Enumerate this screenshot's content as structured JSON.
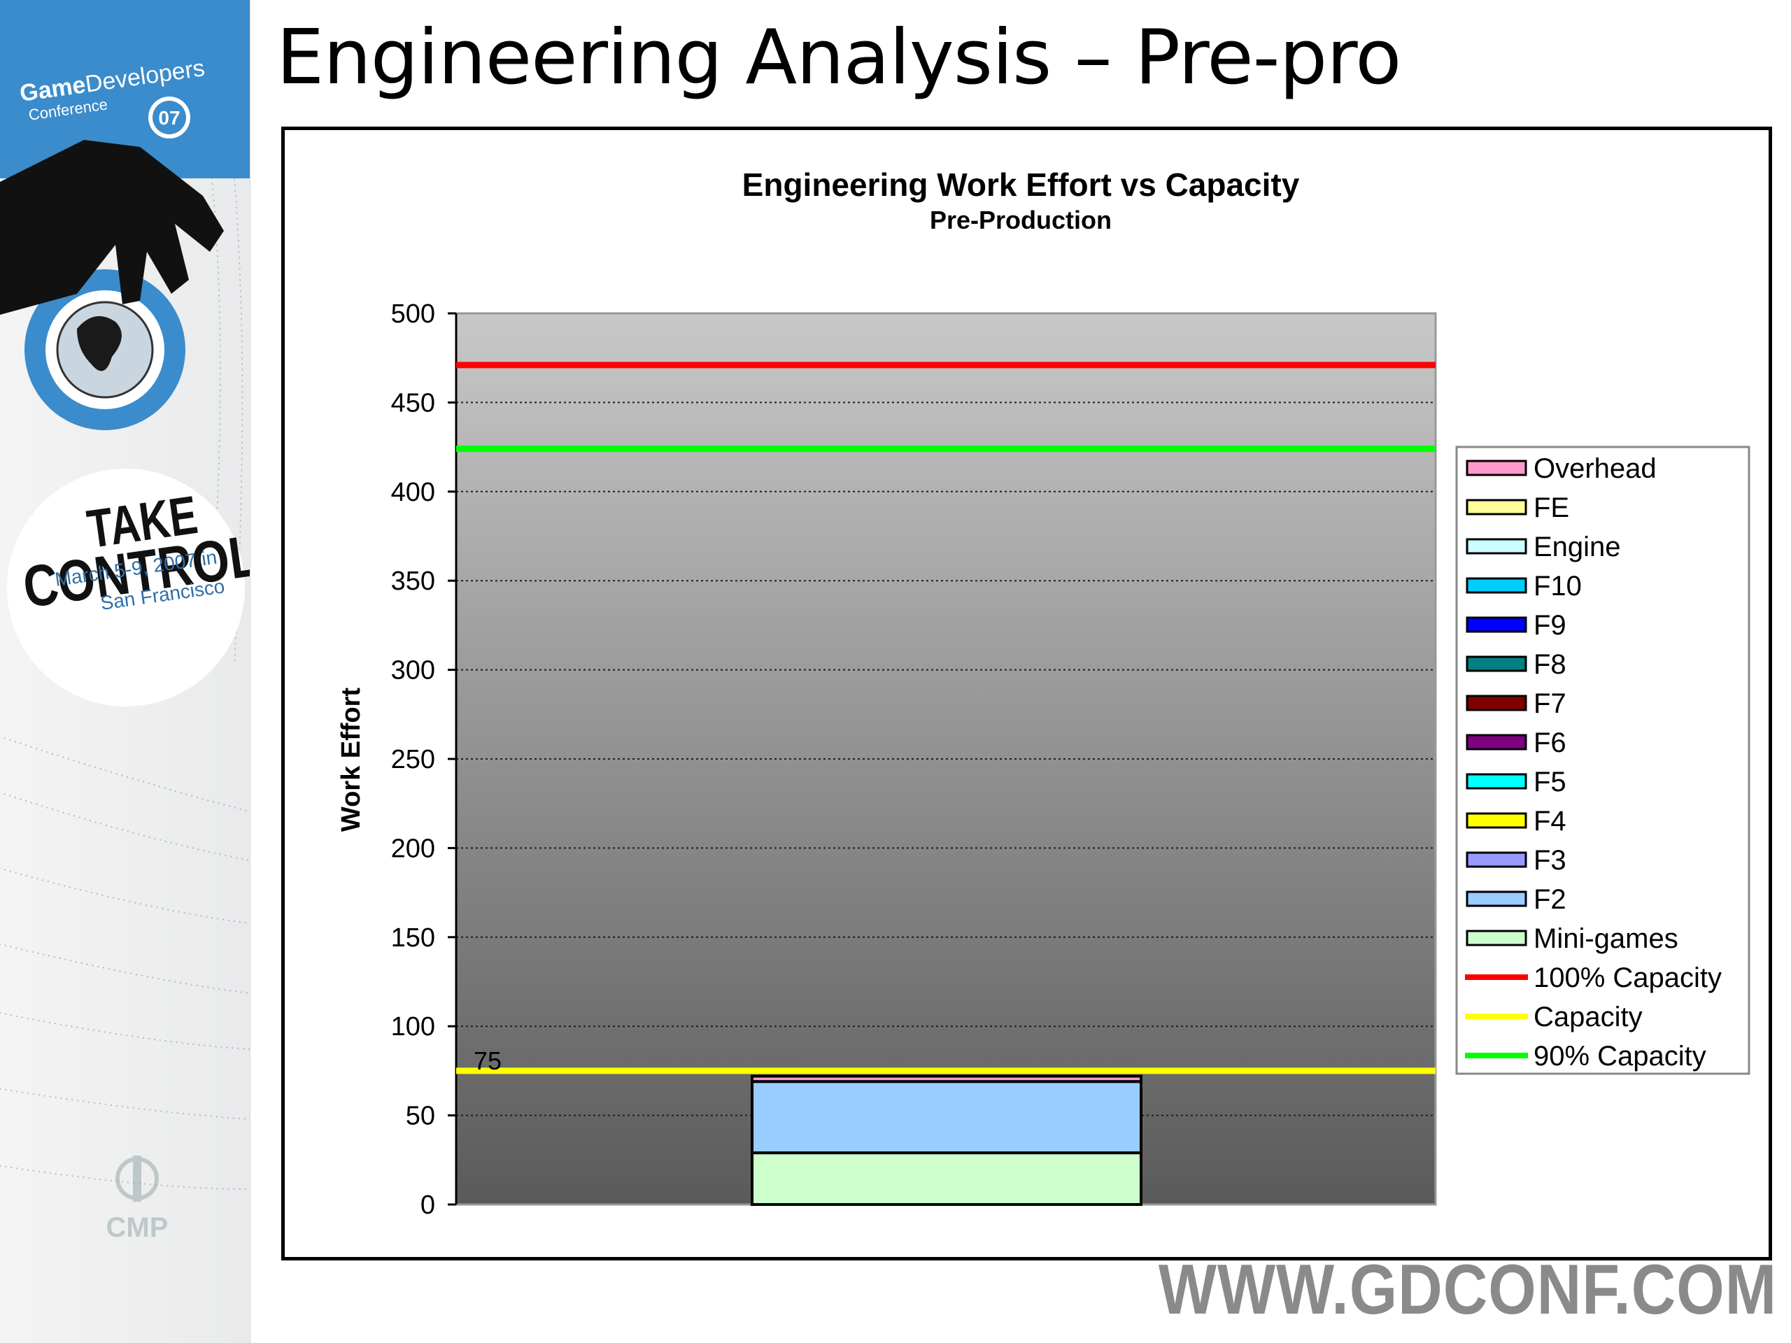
{
  "slide": {
    "title": "Engineering Analysis – Pre-pro",
    "footer_url": "WWW.GDCONF.COM"
  },
  "sidebar": {
    "logo_line1_bold": "Game",
    "logo_line1_rest": "Developers",
    "logo_line2": "Conference",
    "logo_year": "07",
    "tagline_1": "TAKE",
    "tagline_2": "CONTROL",
    "date_1": "March 5-9, 2007 in",
    "date_2": "San Francisco",
    "sponsor": "CMP",
    "colors": {
      "blue": "#3a8ccc",
      "dark": "#111111"
    }
  },
  "chart_data": {
    "type": "bar",
    "stacked": true,
    "title": "Engineering Work Effort vs Capacity",
    "subtitle": "Pre-Production",
    "xlabel": "",
    "ylabel": "Work Effort",
    "ylim": [
      0,
      500
    ],
    "yticks": [
      0,
      50,
      100,
      150,
      200,
      250,
      300,
      350,
      400,
      450,
      500
    ],
    "grid": true,
    "legend_position": "right",
    "series": [
      {
        "name": "Mini-games",
        "values": [
          29
        ],
        "color": "#ccffcc"
      },
      {
        "name": "F2",
        "values": [
          40
        ],
        "color": "#99ccff"
      },
      {
        "name": "F3",
        "values": [
          0
        ],
        "color": "#9999ff"
      },
      {
        "name": "F4",
        "values": [
          0
        ],
        "color": "#ffff00"
      },
      {
        "name": "F5",
        "values": [
          0
        ],
        "color": "#00ffff"
      },
      {
        "name": "F6",
        "values": [
          0
        ],
        "color": "#800080"
      },
      {
        "name": "F7",
        "values": [
          0
        ],
        "color": "#800000"
      },
      {
        "name": "F8",
        "values": [
          0
        ],
        "color": "#008080"
      },
      {
        "name": "F9",
        "values": [
          0
        ],
        "color": "#0000ff"
      },
      {
        "name": "F10",
        "values": [
          0
        ],
        "color": "#00ccff"
      },
      {
        "name": "Engine",
        "values": [
          0
        ],
        "color": "#ccffff"
      },
      {
        "name": "FE",
        "values": [
          0
        ],
        "color": "#ffff99"
      },
      {
        "name": "Overhead",
        "values": [
          3
        ],
        "color": "#ff99cc"
      }
    ],
    "lines": [
      {
        "name": "100% Capacity",
        "value": 471,
        "color": "#ff0000"
      },
      {
        "name": "Capacity",
        "value": 75,
        "color": "#ffff00"
      },
      {
        "name": "90% Capacity",
        "value": 424,
        "color": "#00ff00"
      }
    ],
    "annotations": [
      {
        "text": "75",
        "y": 75
      }
    ],
    "legend_order": [
      "Overhead",
      "FE",
      "Engine",
      "F10",
      "F9",
      "F8",
      "F7",
      "F6",
      "F5",
      "F4",
      "F3",
      "F2",
      "Mini-games",
      "100% Capacity",
      "Capacity",
      "90% Capacity"
    ]
  }
}
